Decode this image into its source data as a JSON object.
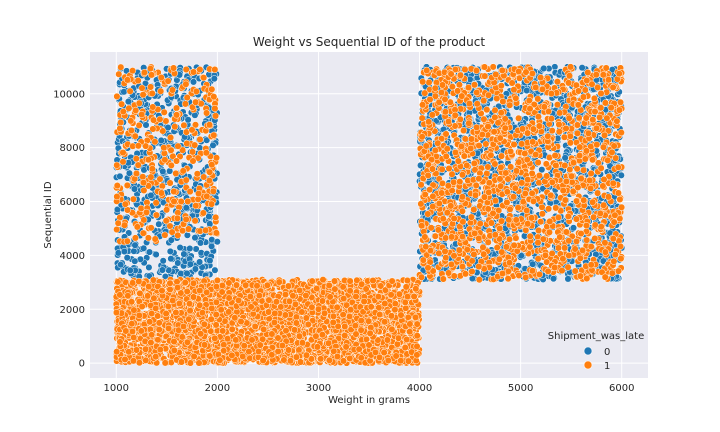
{
  "chart_data": {
    "type": "scatter",
    "title": "Weight vs Sequential ID of the product",
    "xlabel": "Weight in grams",
    "ylabel": "Sequential ID",
    "xlim": [
      740,
      6260
    ],
    "ylim": [
      -550,
      11550
    ],
    "x_ticks": [
      1000,
      2000,
      3000,
      4000,
      5000,
      6000
    ],
    "y_ticks": [
      0,
      2000,
      4000,
      6000,
      8000,
      10000
    ],
    "grid": true,
    "legend": {
      "title": "Shipment_was_late",
      "placement": "bottom-right",
      "entries": [
        {
          "label": "0",
          "color": "#1f77b4"
        },
        {
          "label": "1",
          "color": "#ff7f0e"
        }
      ]
    },
    "series": [
      {
        "name": "0",
        "color": "#1f77b4",
        "regions": [
          {
            "x_range": [
              1000,
              2000
            ],
            "y_range": [
              3200,
              11000
            ],
            "count": 700
          },
          {
            "x_range": [
              4000,
              6000
            ],
            "y_range": [
              3100,
              11000
            ],
            "count": 1900
          }
        ]
      },
      {
        "name": "1",
        "color": "#ff7f0e",
        "regions": [
          {
            "x_range": [
              1000,
              2000
            ],
            "y_range": [
              4500,
              11000
            ],
            "count": 350
          },
          {
            "x_range": [
              1000,
              4000
            ],
            "y_range": [
              0,
              3100
            ],
            "count": 3600
          },
          {
            "x_range": [
              4000,
              6000
            ],
            "y_range": [
              3100,
              11000
            ],
            "count": 1500
          }
        ]
      }
    ]
  }
}
